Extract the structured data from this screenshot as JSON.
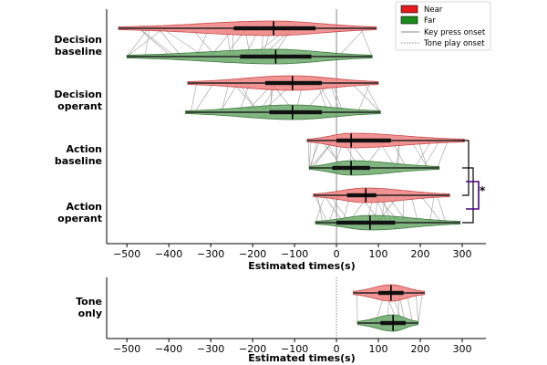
{
  "chart_data": {
    "type": "violin",
    "colors": {
      "near": "#f08080",
      "far": "#6aa86a",
      "near_edge": "#c44a4a",
      "far_edge": "#3f7a3f",
      "bracket": "#4b0082"
    },
    "legend": {
      "near": "Near",
      "far": "Far",
      "key_press": "Key press onset",
      "tone_play": "Tone play onset",
      "near_color": "#e41a1c",
      "far_color": "#1a8c1a"
    },
    "xticks": [
      -500,
      -400,
      -300,
      -200,
      -100,
      0,
      100,
      200,
      300
    ],
    "tick_labels": [
      "−500",
      "−400",
      "−300",
      "−200",
      "−100",
      "0",
      "100",
      "200",
      "300"
    ],
    "xlabel": "Estimated times(s)",
    "xlabel_bottom": "Estimated times(s)",
    "xlim": [
      -555,
      345
    ],
    "significance": "*",
    "top_panel": {
      "reference_line": "key_press",
      "conditions": [
        {
          "label_line1": "Decision",
          "label_line2": "baseline",
          "near": {
            "min": -520,
            "max": 95,
            "q1": -245,
            "median": -150,
            "q3": -50,
            "wmin": -520,
            "wmax": 95
          },
          "far": {
            "min": -500,
            "max": 85,
            "q1": -230,
            "median": -145,
            "q3": -60,
            "wmin": -500,
            "wmax": 85
          }
        },
        {
          "label_line1": "Decision",
          "label_line2": "operant",
          "near": {
            "min": -355,
            "max": 100,
            "q1": -170,
            "median": -105,
            "q3": -35,
            "wmin": -355,
            "wmax": 100
          },
          "far": {
            "min": -360,
            "max": 105,
            "q1": -160,
            "median": -105,
            "q3": -35,
            "wmin": -360,
            "wmax": 105
          }
        },
        {
          "label_line1": "Action",
          "label_line2": "baseline",
          "near": {
            "min": -70,
            "max": 305,
            "q1": 0,
            "median": 35,
            "q3": 130,
            "wmin": -70,
            "wmax": 305
          },
          "far": {
            "min": -65,
            "max": 245,
            "q1": -10,
            "median": 35,
            "q3": 80,
            "wmin": -65,
            "wmax": 245
          }
        },
        {
          "label_line1": "Action",
          "label_line2": "operant",
          "near": {
            "min": -55,
            "max": 270,
            "q1": 25,
            "median": 70,
            "q3": 95,
            "wmin": -55,
            "wmax": 270
          },
          "far": {
            "min": -50,
            "max": 295,
            "q1": 0,
            "median": 80,
            "q3": 140,
            "wmin": -50,
            "wmax": 295
          }
        }
      ]
    },
    "bottom_panel": {
      "reference_line": "tone_play",
      "label_line1": "Tone",
      "label_line2": "only",
      "near": {
        "min": 40,
        "max": 210,
        "q1": 100,
        "median": 130,
        "q3": 160,
        "wmin": 40,
        "wmax": 210
      },
      "far": {
        "min": 50,
        "max": 195,
        "q1": 105,
        "median": 135,
        "q3": 165,
        "wmin": 50,
        "wmax": 195
      }
    }
  }
}
